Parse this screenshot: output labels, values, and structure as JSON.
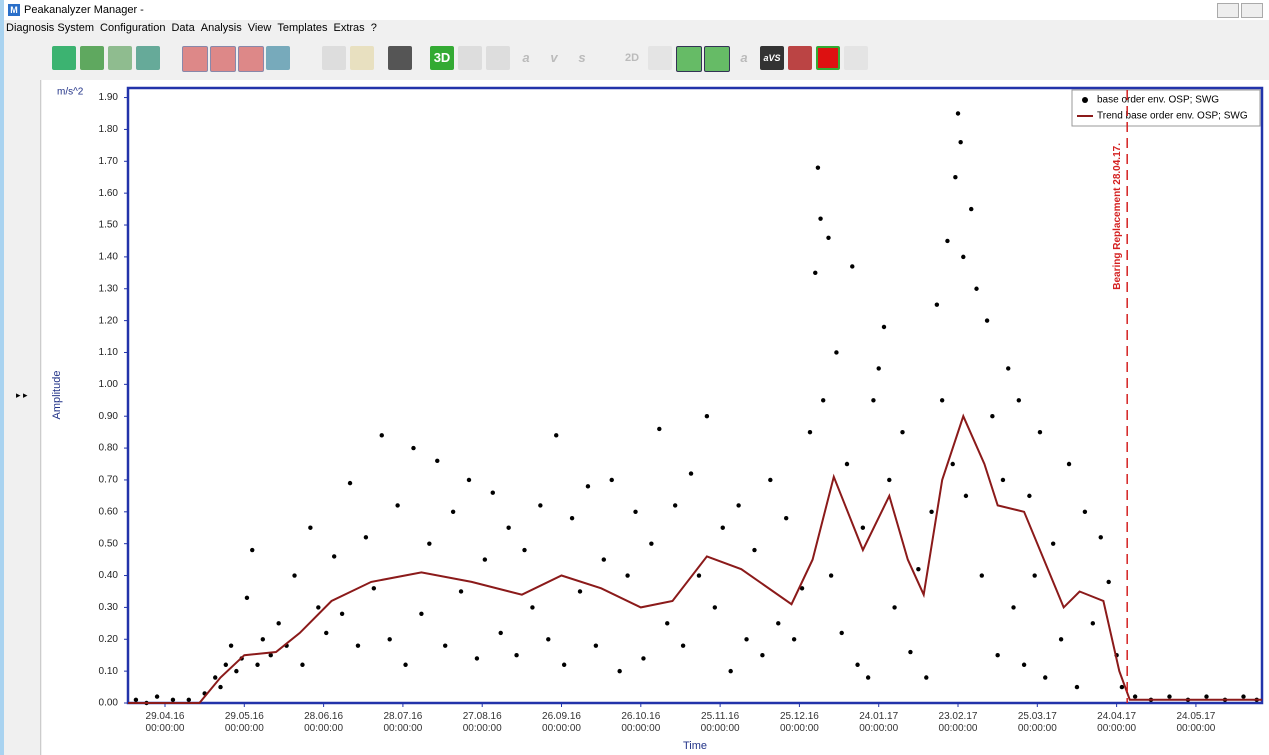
{
  "window": {
    "title": "Peakanalyzer Manager -",
    "icon": "M"
  },
  "menu": [
    "Diagnosis System",
    "Configuration",
    "Data",
    "Analysis",
    "View",
    "Templates",
    "Extras",
    "?"
  ],
  "toolbar": [
    "3D",
    "a",
    "v",
    "s",
    "2D",
    "a",
    "aVS"
  ],
  "chart_data": {
    "type": "scatter",
    "unit_label": "m/s^2",
    "y_label": "Amplitude",
    "x_label": "Time",
    "xlim": [
      "15.04.16",
      "18.06.17"
    ],
    "ylim": [
      0,
      1.93
    ],
    "xticks": [
      {
        "value": "29.04.16",
        "label": "29.04.16 00:00:00"
      },
      {
        "value": "29.05.16",
        "label": "29.05.16 00:00:00"
      },
      {
        "value": "28.06.16",
        "label": "28.06.16 00:00:00"
      },
      {
        "value": "28.07.16",
        "label": "28.07.16 00:00:00"
      },
      {
        "value": "27.08.16",
        "label": "27.08.16 00:00:00"
      },
      {
        "value": "26.09.16",
        "label": "26.09.16 00:00:00"
      },
      {
        "value": "26.10.16",
        "label": "26.10.16 00:00:00"
      },
      {
        "value": "25.11.16",
        "label": "25.11.16 00:00:00"
      },
      {
        "value": "25.12.16",
        "label": "25.12.16 00:00:00"
      },
      {
        "value": "24.01.17",
        "label": "24.01.17 00:00:00"
      },
      {
        "value": "23.02.17",
        "label": "23.02.17 00:00:00"
      },
      {
        "value": "25.03.17",
        "label": "25.03.17 00:00:00"
      },
      {
        "value": "24.04.17",
        "label": "24.04.17 00:00:00"
      },
      {
        "value": "24.05.17",
        "label": "24.05.17 00:00:00"
      }
    ],
    "yticks": [
      {
        "value": 0,
        "label": "0.00"
      },
      {
        "value": 0.1,
        "label": "0.10"
      },
      {
        "value": 0.2,
        "label": "0.20"
      },
      {
        "value": 0.3,
        "label": "0.30"
      },
      {
        "value": 0.4,
        "label": "0.40"
      },
      {
        "value": 0.5,
        "label": "0.50"
      },
      {
        "value": 0.6,
        "label": "0.60"
      },
      {
        "value": 0.7,
        "label": "0.70"
      },
      {
        "value": 0.8,
        "label": "0.80"
      },
      {
        "value": 0.9,
        "label": "0.90"
      },
      {
        "value": 1,
        "label": "1.00"
      },
      {
        "value": 1.1,
        "label": "1.10"
      },
      {
        "value": 1.2,
        "label": "1.20"
      },
      {
        "value": 1.3,
        "label": "1.30"
      },
      {
        "value": 1.4,
        "label": "1.40"
      },
      {
        "value": 1.5,
        "label": "1.50"
      },
      {
        "value": 1.6,
        "label": "1.60"
      },
      {
        "value": 1.7,
        "label": "1.70"
      },
      {
        "value": 1.8,
        "label": "1.80"
      },
      {
        "value": 1.9,
        "label": "1.90"
      }
    ],
    "legend": "upper right",
    "series": [
      {
        "name": "base order env. OSP; SWG",
        "type": "scatter",
        "color": "#000000",
        "x": [
          "18.04.16",
          "22.04.16",
          "26.04.16",
          "02.05.16",
          "08.05.16",
          "14.05.16",
          "18.05.16",
          "20.05.16",
          "22.05.16",
          "24.05.16",
          "26.05.16",
          "28.05.16",
          "30.05.16",
          "01.06.16",
          "03.06.16",
          "05.06.16",
          "08.06.16",
          "11.06.16",
          "14.06.16",
          "17.06.16",
          "20.06.16",
          "23.06.16",
          "26.06.16",
          "29.06.16",
          "02.07.16",
          "05.07.16",
          "08.07.16",
          "11.07.16",
          "14.07.16",
          "17.07.16",
          "20.07.16",
          "23.07.16",
          "26.07.16",
          "29.07.16",
          "01.08.16",
          "04.08.16",
          "07.08.16",
          "10.08.16",
          "13.08.16",
          "16.08.16",
          "19.08.16",
          "22.08.16",
          "25.08.16",
          "28.08.16",
          "31.08.16",
          "03.09.16",
          "06.09.16",
          "09.09.16",
          "12.09.16",
          "15.09.16",
          "18.09.16",
          "21.09.16",
          "24.09.16",
          "27.09.16",
          "30.09.16",
          "03.10.16",
          "06.10.16",
          "09.10.16",
          "12.10.16",
          "15.10.16",
          "18.10.16",
          "21.10.16",
          "24.10.16",
          "27.10.16",
          "30.10.16",
          "02.11.16",
          "05.11.16",
          "08.11.16",
          "11.11.16",
          "14.11.16",
          "17.11.16",
          "20.11.16",
          "23.11.16",
          "26.11.16",
          "29.11.16",
          "02.12.16",
          "05.12.16",
          "08.12.16",
          "11.12.16",
          "14.12.16",
          "17.12.16",
          "20.12.16",
          "23.12.16",
          "26.12.16",
          "29.12.16",
          "31.12.16",
          "01.01.17",
          "02.01.17",
          "03.01.17",
          "05.01.17",
          "06.01.17",
          "08.01.17",
          "10.01.17",
          "12.01.17",
          "14.01.17",
          "16.01.17",
          "18.01.17",
          "20.01.17",
          "22.01.17",
          "24.01.17",
          "26.01.17",
          "28.01.17",
          "30.01.17",
          "02.02.17",
          "05.02.17",
          "08.02.17",
          "11.02.17",
          "13.02.17",
          "15.02.17",
          "17.02.17",
          "19.02.17",
          "21.02.17",
          "22.02.17",
          "23.02.17",
          "24.02.17",
          "25.02.17",
          "26.02.17",
          "28.02.17",
          "02.03.17",
          "04.03.17",
          "06.03.17",
          "08.03.17",
          "10.03.17",
          "12.03.17",
          "14.03.17",
          "16.03.17",
          "18.03.17",
          "20.03.17",
          "22.03.17",
          "24.03.17",
          "26.03.17",
          "28.03.17",
          "31.03.17",
          "03.04.17",
          "06.04.17",
          "09.04.17",
          "12.04.17",
          "15.04.17",
          "18.04.17",
          "21.04.17",
          "24.04.17",
          "26.04.17",
          "01.05.17",
          "07.05.17",
          "14.05.17",
          "21.05.17",
          "28.05.17",
          "04.06.17",
          "11.06.17",
          "16.06.17"
        ],
        "values": [
          0.01,
          0,
          0.02,
          0.01,
          0.01,
          0.03,
          0.08,
          0.05,
          0.12,
          0.18,
          0.1,
          0.14,
          0.33,
          0.48,
          0.12,
          0.2,
          0.15,
          0.25,
          0.18,
          0.4,
          0.12,
          0.55,
          0.3,
          0.22,
          0.46,
          0.28,
          0.69,
          0.18,
          0.52,
          0.36,
          0.84,
          0.2,
          0.62,
          0.12,
          0.8,
          0.28,
          0.5,
          0.76,
          0.18,
          0.6,
          0.35,
          0.7,
          0.14,
          0.45,
          0.66,
          0.22,
          0.55,
          0.15,
          0.48,
          0.3,
          0.62,
          0.2,
          0.84,
          0.12,
          0.58,
          0.35,
          0.68,
          0.18,
          0.45,
          0.7,
          0.1,
          0.4,
          0.6,
          0.14,
          0.5,
          0.86,
          0.25,
          0.62,
          0.18,
          0.72,
          0.4,
          0.9,
          0.3,
          0.55,
          0.1,
          0.62,
          0.2,
          0.48,
          0.15,
          0.7,
          0.25,
          0.58,
          0.2,
          0.36,
          0.85,
          1.35,
          1.68,
          1.52,
          0.95,
          1.46,
          0.4,
          1.1,
          0.22,
          0.75,
          1.37,
          0.12,
          0.55,
          0.08,
          0.95,
          1.05,
          1.18,
          0.7,
          0.3,
          0.85,
          0.16,
          0.42,
          0.08,
          0.6,
          1.25,
          0.95,
          1.45,
          0.75,
          1.65,
          1.85,
          1.76,
          1.4,
          0.65,
          1.55,
          1.3,
          0.4,
          1.2,
          0.9,
          0.15,
          0.7,
          1.05,
          0.3,
          0.95,
          0.12,
          0.65,
          0.4,
          0.85,
          0.08,
          0.5,
          0.2,
          0.75,
          0.05,
          0.6,
          0.25,
          0.52,
          0.38,
          0.15,
          0.05,
          0.02,
          0.01,
          0.02,
          0.01,
          0.02,
          0.01,
          0.02,
          0.01
        ]
      },
      {
        "name": "Trend base order env. OSP; SWG",
        "type": "line",
        "color": "#8b1a1a",
        "x": [
          "15.04.16",
          "12.05.16",
          "20.05.16",
          "29.05.16",
          "10.06.16",
          "19.06.16",
          "01.07.16",
          "16.07.16",
          "04.08.16",
          "23.08.16",
          "11.09.16",
          "26.09.16",
          "11.10.16",
          "26.10.16",
          "07.11.16",
          "20.11.16",
          "03.12.16",
          "22.12.16",
          "30.12.16",
          "07.01.17",
          "18.01.17",
          "28.01.17",
          "04.02.17",
          "10.02.17",
          "17.02.17",
          "25.02.17",
          "05.03.17",
          "10.03.17",
          "20.03.17",
          "29.03.17",
          "04.04.17",
          "10.04.17",
          "19.04.17",
          "25.04.17",
          "29.04.17",
          "18.06.17"
        ],
        "values": [
          0,
          0,
          0.08,
          0.15,
          0.16,
          0.22,
          0.32,
          0.38,
          0.41,
          0.38,
          0.34,
          0.4,
          0.36,
          0.3,
          0.32,
          0.46,
          0.42,
          0.31,
          0.45,
          0.71,
          0.48,
          0.65,
          0.45,
          0.34,
          0.7,
          0.9,
          0.75,
          0.62,
          0.6,
          0.42,
          0.3,
          0.35,
          0.32,
          0.1,
          0.01,
          0.01
        ]
      }
    ],
    "annotations": [
      {
        "text": "Bearing Replacement 28.04.17.",
        "x": "28.04.17",
        "color": "#d42020"
      }
    ]
  }
}
